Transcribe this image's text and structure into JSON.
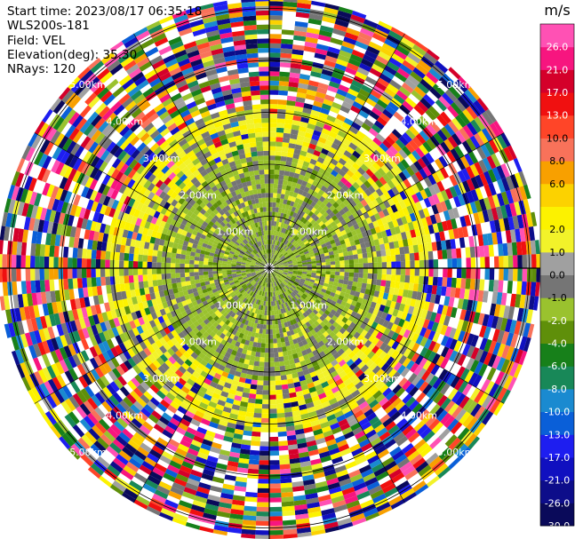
{
  "header": {
    "start_time": "Start time: 2023/08/17 06:35:18",
    "instrument": "WLS200s-181",
    "field": "Field: VEL",
    "elevation": "Elevation(deg): 35.30",
    "nrays": "NRays: 120"
  },
  "chart_data": {
    "type": "ppi",
    "field": "VEL",
    "units": "m/s",
    "nrays": 120,
    "elevation_deg": 35.3,
    "ring_labels": [
      "1.00km",
      "2.00km",
      "3.00km",
      "4.00km",
      "5.00km"
    ],
    "ring_km": [
      1,
      2,
      3,
      4,
      5
    ],
    "colorbar": {
      "unit": "m/s",
      "boundaries": [
        -30,
        -26,
        -21,
        -17,
        -13,
        -10,
        -8,
        -6,
        -4,
        -2,
        -1,
        0,
        1,
        2,
        4,
        6,
        8,
        10,
        13,
        17,
        21,
        26,
        30
      ],
      "tick_labels": [
        "-30.0",
        "-26.0",
        "-21.0",
        "-17.0",
        "-13.0",
        "-10.0",
        "-8.0",
        "-6.0",
        "-4.0",
        "-2.0",
        "-1.0",
        "0.0",
        "1.0",
        "2.0",
        "",
        "6.0",
        "8.0",
        "10.0",
        "13.0",
        "17.0",
        "21.0",
        "26.0",
        ""
      ],
      "colors": [
        "#0a0a5a",
        "#0d0d8a",
        "#1010c0",
        "#1e1ef0",
        "#0a5fd8",
        "#1a8ad0",
        "#188858",
        "#17801a",
        "#5f8f0a",
        "#9ac22e",
        "#757575",
        "#a0a0a0",
        "#f2f22a",
        "#fcf200",
        "#fcd200",
        "#f8a000",
        "#f8725a",
        "#ff4528",
        "#f01010",
        "#d4002a",
        "#f7157f",
        "#ff51b4"
      ]
    },
    "zones_km": {
      "grey_core": [
        0,
        0.75
      ],
      "green_zone": [
        0.75,
        2.1
      ],
      "yellow_zone": [
        2.1,
        3.1
      ],
      "noise_zone": [
        3.1,
        5.5
      ]
    }
  }
}
